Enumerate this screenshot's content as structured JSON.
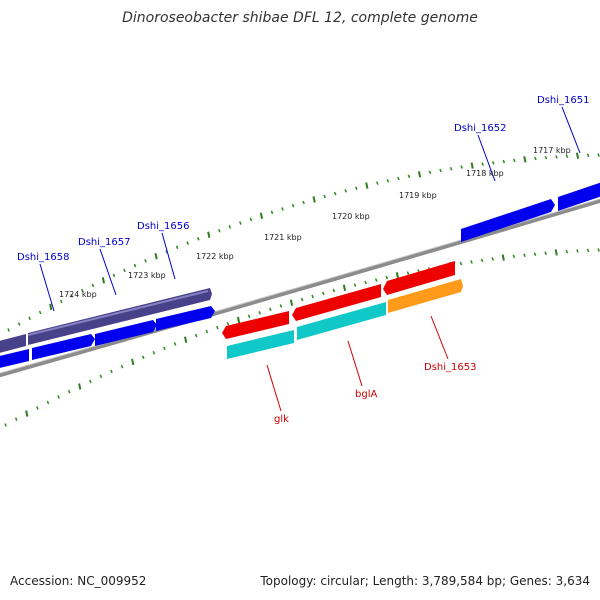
{
  "title": "Dinoroseobacter shibae DFL 12, complete genome",
  "footer": {
    "accession": "Accession: NC_009952",
    "summary": "Topology: circular; Length: 3,789,584 bp; Genes: 3,634"
  },
  "colors": {
    "backbone": "#8c8c8c",
    "tick_minor": "#3a8c2a",
    "tick_major": "#2e7d1e",
    "forward_cds": "#0000ee",
    "forward_rna": "#47418a",
    "reverse_red": "#ee0000",
    "reverse_cyan": "#11c8c8",
    "reverse_orange": "#ff9a1a",
    "label_blue": "#0000cc",
    "label_red": "#cc0000"
  },
  "kbp_ticks": [
    "1724 kbp",
    "1723 kbp",
    "1722 kbp",
    "1721 kbp",
    "1720 kbp",
    "1719 kbp",
    "1718 kbp",
    "1717 kbp"
  ],
  "forward_labels": [
    "Dshi_1658",
    "Dshi_1657",
    "Dshi_1656",
    "Dshi_1652",
    "Dshi_1651"
  ],
  "reverse_labels": [
    "glk",
    "bglA",
    "Dshi_1653"
  ]
}
